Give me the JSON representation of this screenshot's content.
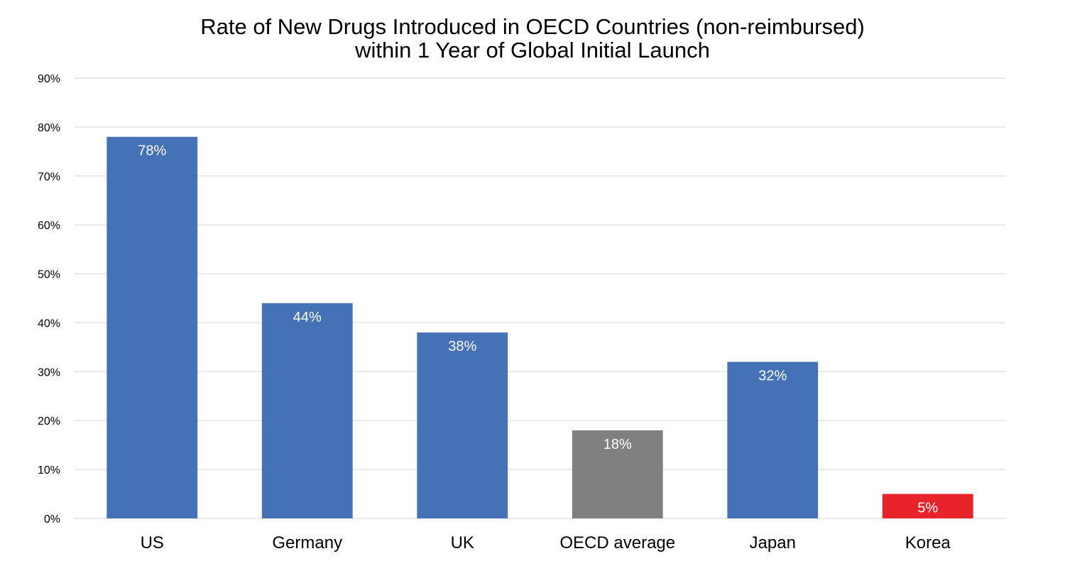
{
  "chart_data": {
    "type": "bar",
    "title": [
      "Rate of New Drugs Introduced in OECD Countries (non-reimbursed)",
      "within 1 Year of Global Initial Launch"
    ],
    "categories": [
      "US",
      "Germany",
      "UK",
      "OECD average",
      "Japan",
      "Korea"
    ],
    "values": [
      78,
      44,
      38,
      18,
      32,
      5
    ],
    "data_labels": [
      "78%",
      "44%",
      "38%",
      "18%",
      "32%",
      "5%"
    ],
    "bar_colors": [
      "#4572b7",
      "#4572b7",
      "#4572b7",
      "#808080",
      "#4572b7",
      "#e8232a"
    ],
    "y_ticks": [
      0,
      10,
      20,
      30,
      40,
      50,
      60,
      70,
      80,
      90
    ],
    "y_tick_labels": [
      "0%",
      "10%",
      "20%",
      "30%",
      "40%",
      "50%",
      "60%",
      "70%",
      "80%",
      "90%"
    ],
    "ylim": [
      0,
      90
    ],
    "xlabel": "",
    "ylabel": "",
    "grid": true,
    "legend": "none"
  }
}
